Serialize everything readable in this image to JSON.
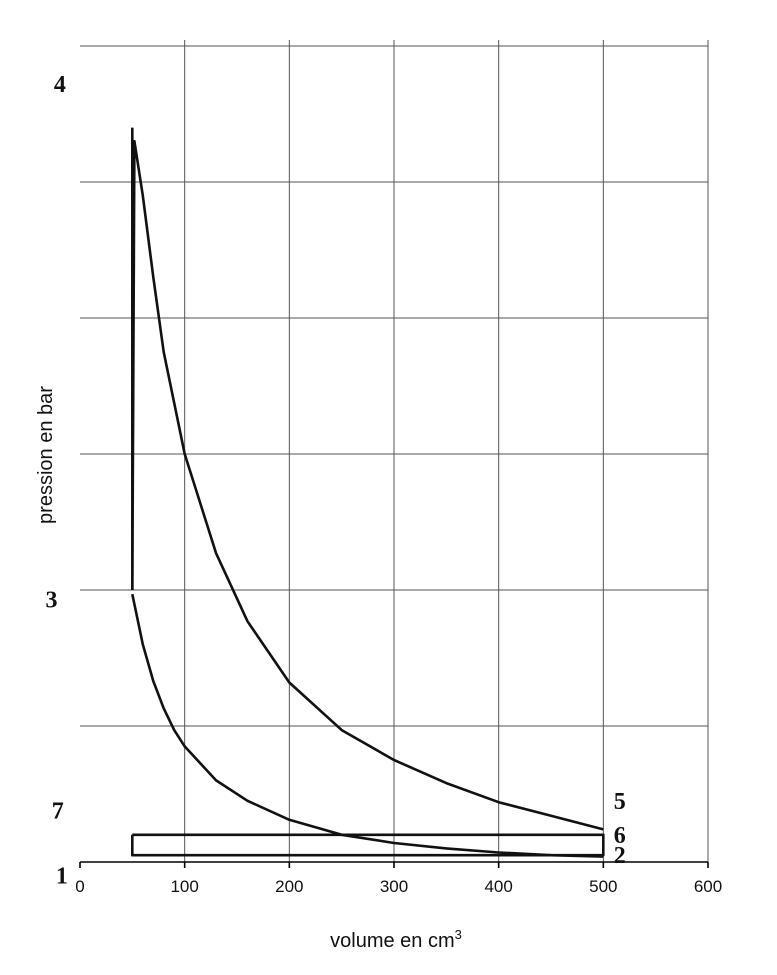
{
  "chart_data": {
    "type": "line",
    "title": "",
    "xlabel": "volume en cm",
    "xlabel_sup": "3",
    "ylabel": "pression en bar",
    "xlim": [
      0,
      600
    ],
    "x_ticks": [
      "0",
      "100",
      "200",
      "300",
      "400",
      "500",
      "600"
    ],
    "y_gridlines": 6,
    "grid": true,
    "series": [
      {
        "points": [
          [
            50,
            2.0
          ],
          [
            52,
            5.3
          ],
          [
            60,
            4.9
          ],
          [
            70,
            4.3
          ],
          [
            80,
            3.75
          ],
          [
            100,
            3.0
          ],
          [
            130,
            2.27
          ],
          [
            160,
            1.77
          ],
          [
            200,
            1.32
          ],
          [
            250,
            0.97
          ],
          [
            300,
            0.75
          ],
          [
            350,
            0.58
          ],
          [
            400,
            0.44
          ],
          [
            450,
            0.34
          ],
          [
            500,
            0.24
          ]
        ]
      },
      {
        "points": [
          [
            50,
            1.97
          ],
          [
            60,
            1.6
          ],
          [
            70,
            1.33
          ],
          [
            80,
            1.13
          ],
          [
            90,
            0.97
          ],
          [
            100,
            0.85
          ],
          [
            130,
            0.6
          ],
          [
            160,
            0.45
          ],
          [
            200,
            0.31
          ],
          [
            250,
            0.2
          ],
          [
            300,
            0.14
          ],
          [
            350,
            0.1
          ],
          [
            400,
            0.07
          ],
          [
            450,
            0.05
          ],
          [
            500,
            0.04
          ]
        ]
      },
      {
        "points": [
          [
            50,
            0.2
          ],
          [
            500,
            0.2
          ],
          [
            500,
            0.05
          ],
          [
            50,
            0.05
          ],
          [
            50,
            0.2
          ]
        ]
      },
      {
        "points": [
          [
            50,
            5.4
          ],
          [
            50,
            2.0
          ]
        ]
      }
    ],
    "point_labels": [
      {
        "text": "4",
        "x": -25,
        "y": 5.72
      },
      {
        "text": "3",
        "x": -33,
        "y": 1.93
      },
      {
        "text": "5",
        "x": 510,
        "y": 0.45
      },
      {
        "text": "6",
        "x": 510,
        "y": 0.2
      },
      {
        "text": "2",
        "x": 510,
        "y": 0.05
      },
      {
        "text": "7",
        "x": -27,
        "y": 0.38
      },
      {
        "text": "1",
        "x": -23,
        "y": -0.1
      }
    ]
  }
}
